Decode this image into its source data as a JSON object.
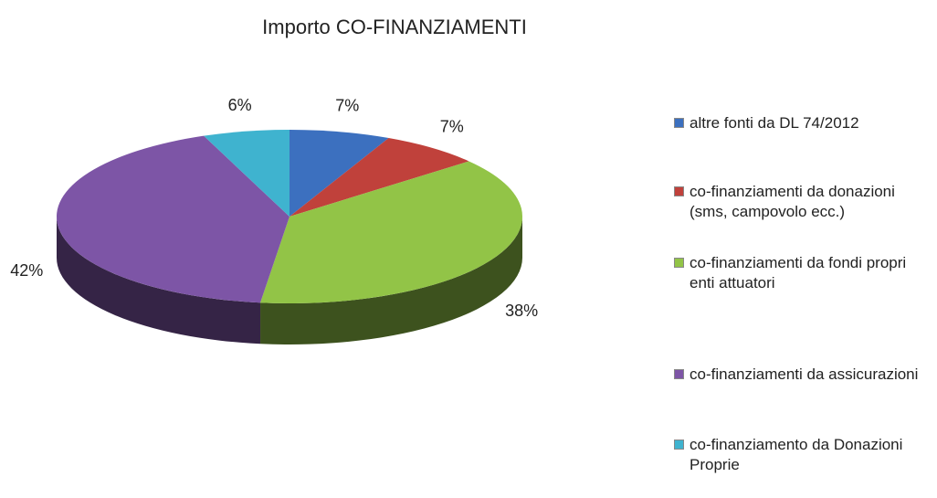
{
  "chart_data": {
    "type": "pie",
    "title": "Importo CO-FINANZIAMENTI",
    "categories": [
      "altre fonti da DL 74/2012",
      "co-finanziamenti da donazioni (sms, campovolo ecc.)",
      "co-finanziamenti da fondi propri enti attuatori",
      "co-finanziamenti da assicurazioni",
      "co-finanziamento da Donazioni Proprie"
    ],
    "values": [
      7,
      7,
      38,
      42,
      6
    ],
    "value_labels": [
      "7%",
      "7%",
      "38%",
      "42%",
      "6%"
    ],
    "colors": [
      "#3c70bf",
      "#c0413b",
      "#92c447",
      "#7d55a6",
      "#3fb3cf"
    ],
    "legend": "right"
  }
}
